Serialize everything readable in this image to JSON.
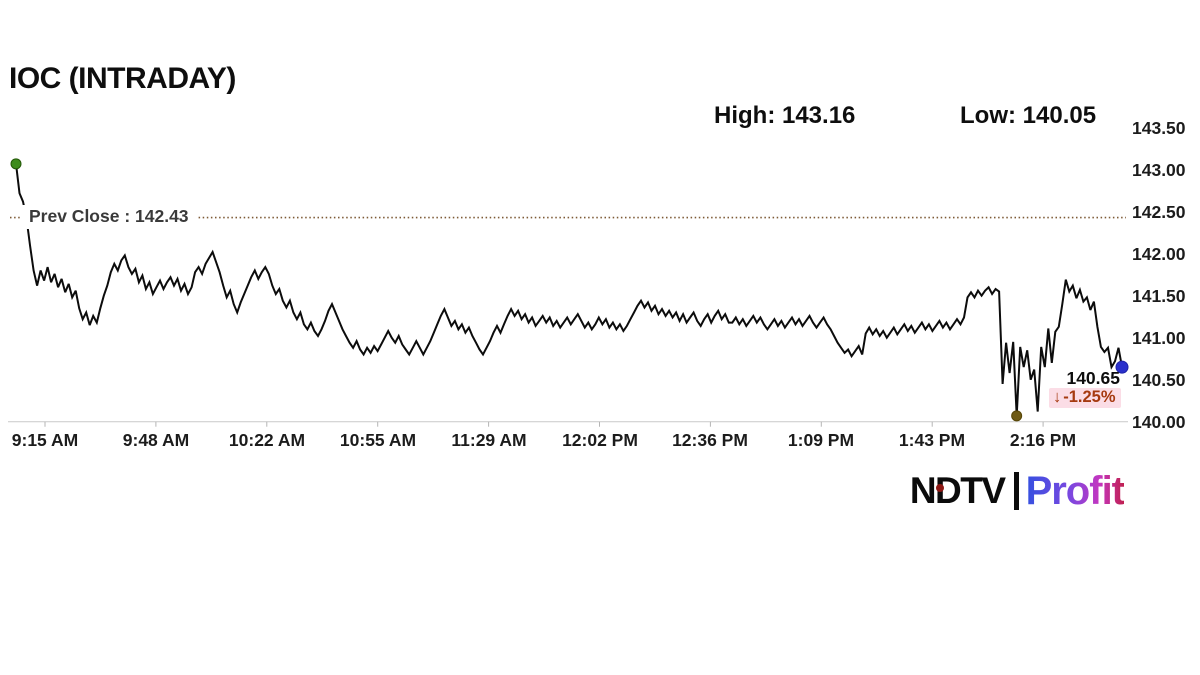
{
  "title": "IOC (INTRADAY)",
  "stats": {
    "high_label": "High: 143.16",
    "low_label": "Low: 140.05"
  },
  "prev_close": {
    "label": "Prev Close : 142.43",
    "value": 142.43
  },
  "last_trade": {
    "price_label": "140.65",
    "arrow": "↓",
    "change_label": "-1.25%"
  },
  "logo": {
    "ndtv": "NDTV",
    "profit": "Profit"
  },
  "colors": {
    "line": "#0c0c0c",
    "prev_close_line": "#7d5a36",
    "axis": "#c9c9c9",
    "tick": "#b5b5b5",
    "start_dot": "#3e8c1b",
    "start_dot_edge": "#245808",
    "low_dot": "#6e5a14",
    "low_dot_edge": "#574607",
    "end_dot": "#2a30cc",
    "end_dot_edge": "#1e23a8",
    "change_text": "#a63a10",
    "change_bg": "#fbdde6",
    "ndtv_dot": "#8c1713"
  },
  "chart_data": {
    "type": "line",
    "title": "IOC (INTRADAY)",
    "xlabel": "",
    "ylabel": "",
    "grid": false,
    "legend": "none",
    "high": 143.16,
    "low": 140.05,
    "prev_close": 142.43,
    "last": 140.65,
    "change_pct": -1.25,
    "ylim": [
      140.0,
      143.5
    ],
    "y_ticks": [
      143.5,
      143.0,
      142.5,
      142.0,
      141.5,
      141.0,
      140.5,
      140.0
    ],
    "y_tick_labels": [
      "143.50",
      "143.00",
      "142.50",
      "142.00",
      "141.50",
      "141.00",
      "140.50",
      "140.00"
    ],
    "x_tick_labels": [
      "9:15 AM",
      "9:48 AM",
      "10:22 AM",
      "10:55 AM",
      "11:29 AM",
      "12:02 PM",
      "12:36 PM",
      "1:09 PM",
      "1:43 PM",
      "2:16 PM"
    ],
    "session": {
      "start": "9:15 AM",
      "step_minutes": 1,
      "total_minutes": 315
    },
    "values": [
      143.07,
      142.72,
      142.62,
      142.42,
      142.1,
      141.8,
      141.62,
      141.8,
      141.68,
      141.84,
      141.66,
      141.76,
      141.6,
      141.7,
      141.54,
      141.64,
      141.48,
      141.56,
      141.35,
      141.22,
      141.3,
      141.15,
      141.26,
      141.18,
      141.35,
      141.5,
      141.62,
      141.78,
      141.88,
      141.8,
      141.92,
      141.98,
      141.84,
      141.76,
      141.82,
      141.66,
      141.74,
      141.58,
      141.66,
      141.52,
      141.6,
      141.68,
      141.58,
      141.66,
      141.72,
      141.62,
      141.7,
      141.56,
      141.64,
      141.52,
      141.6,
      141.78,
      141.84,
      141.76,
      141.88,
      141.95,
      142.02,
      141.9,
      141.78,
      141.62,
      141.48,
      141.56,
      141.4,
      141.3,
      141.42,
      141.52,
      141.62,
      141.72,
      141.8,
      141.7,
      141.78,
      141.84,
      141.76,
      141.62,
      141.52,
      141.58,
      141.44,
      141.36,
      141.44,
      141.3,
      141.22,
      141.3,
      141.16,
      141.1,
      141.18,
      141.08,
      141.02,
      141.1,
      141.2,
      141.32,
      141.4,
      141.3,
      141.2,
      141.1,
      141.02,
      140.94,
      140.88,
      140.96,
      140.86,
      140.8,
      140.88,
      140.82,
      140.9,
      140.84,
      140.92,
      141.0,
      141.08,
      141.0,
      140.94,
      141.02,
      140.92,
      140.86,
      140.8,
      140.88,
      140.96,
      140.88,
      140.8,
      140.88,
      140.96,
      141.06,
      141.16,
      141.26,
      141.34,
      141.24,
      141.14,
      141.2,
      141.1,
      141.16,
      141.06,
      141.12,
      141.02,
      140.94,
      140.86,
      140.8,
      140.88,
      140.96,
      141.06,
      141.14,
      141.06,
      141.16,
      141.26,
      141.34,
      141.26,
      141.32,
      141.22,
      141.28,
      141.18,
      141.24,
      141.14,
      141.2,
      141.26,
      141.18,
      141.24,
      141.14,
      141.2,
      141.12,
      141.18,
      141.24,
      141.16,
      141.22,
      141.28,
      141.2,
      141.12,
      141.18,
      141.1,
      141.16,
      141.24,
      141.16,
      141.22,
      141.12,
      141.18,
      141.1,
      141.16,
      141.08,
      141.14,
      141.22,
      141.3,
      141.38,
      141.44,
      141.36,
      141.42,
      141.32,
      141.38,
      141.28,
      141.34,
      141.26,
      141.32,
      141.24,
      141.3,
      141.2,
      141.28,
      141.18,
      141.24,
      141.3,
      141.2,
      141.14,
      141.22,
      141.28,
      141.18,
      141.26,
      141.32,
      141.22,
      141.28,
      141.18,
      141.18,
      141.24,
      141.16,
      141.22,
      141.14,
      141.2,
      141.26,
      141.18,
      141.24,
      141.16,
      141.1,
      141.16,
      141.22,
      141.14,
      141.2,
      141.12,
      141.18,
      141.24,
      141.16,
      141.22,
      141.14,
      141.2,
      141.26,
      141.18,
      141.12,
      141.18,
      141.24,
      141.16,
      141.1,
      141.02,
      140.94,
      140.88,
      140.82,
      140.86,
      140.78,
      140.84,
      140.9,
      140.8,
      141.05,
      141.12,
      141.04,
      141.1,
      141.02,
      141.08,
      141.0,
      141.06,
      141.12,
      141.04,
      141.1,
      141.16,
      141.08,
      141.14,
      141.06,
      141.12,
      141.18,
      141.1,
      141.16,
      141.08,
      141.14,
      141.2,
      141.12,
      141.18,
      141.1,
      141.16,
      141.22,
      141.16,
      141.24,
      141.48,
      141.54,
      141.48,
      141.56,
      141.5,
      141.56,
      141.6,
      141.52,
      141.58,
      141.55,
      140.45,
      140.94,
      140.58,
      140.95,
      140.07,
      140.89,
      140.65,
      140.85,
      140.5,
      140.62,
      140.12,
      140.89,
      140.65,
      141.11,
      140.7,
      141.07,
      141.13,
      141.4,
      141.69,
      141.55,
      141.62,
      141.47,
      141.57,
      141.43,
      141.48,
      141.33,
      141.43,
      141.13,
      140.89,
      140.83,
      140.88,
      140.65,
      140.72,
      140.88,
      140.65
    ]
  }
}
